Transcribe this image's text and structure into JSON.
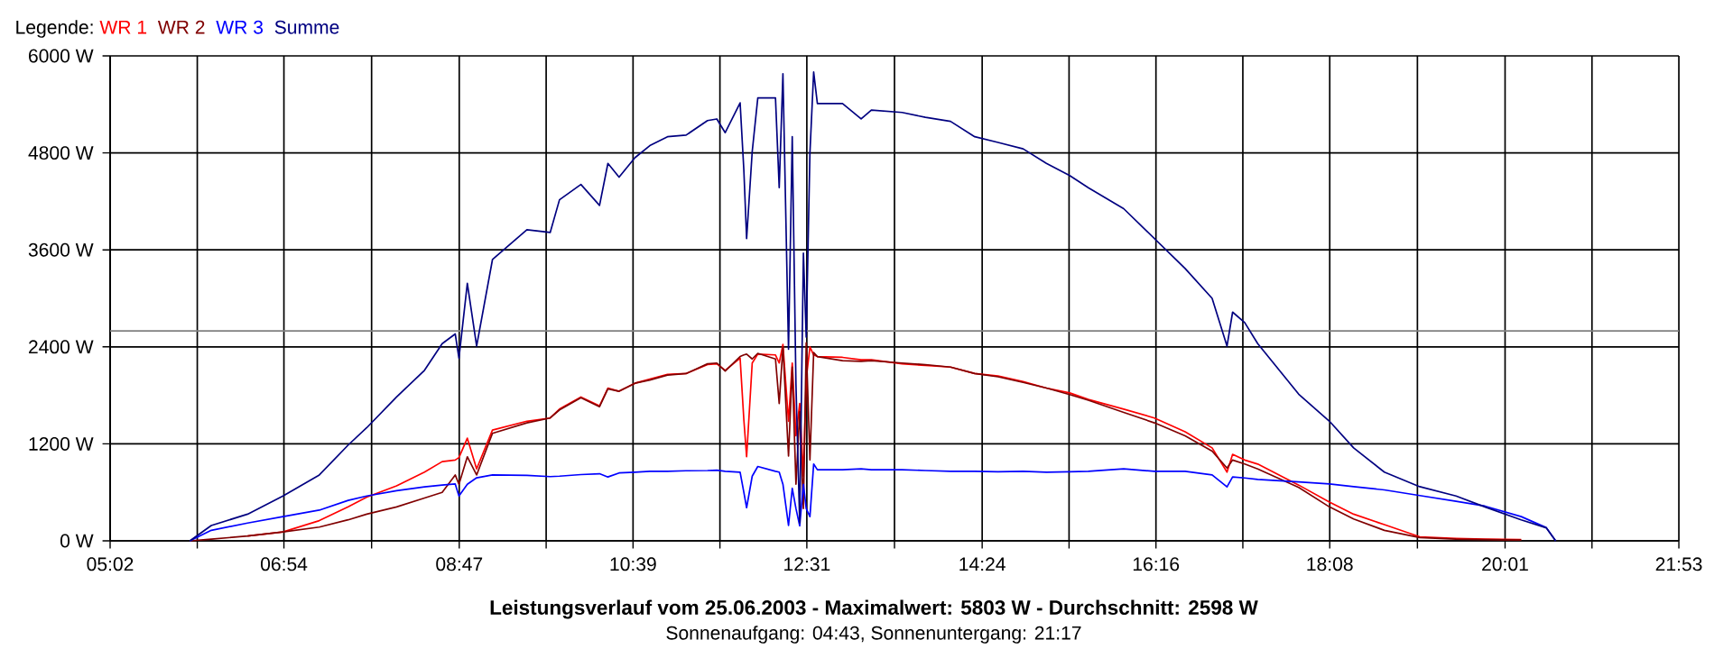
{
  "chart_data": {
    "type": "line",
    "title": "Leistungsverlauf vom 25.06.2003 - Maximalwert: 5803 W - Durchschnitt: 2598 W",
    "subtitle": "Sonnenaufgang: 04:43, Sonnenuntergang: 21:17",
    "legend_title": "Legende:",
    "legend": "top left",
    "grid": true,
    "xlim": [
      5.0333,
      21.8833
    ],
    "ylim": [
      0,
      6000
    ],
    "xticks": [
      {
        "value": 5.0333,
        "label": "05:02"
      },
      {
        "value": 5.9694,
        "label": null
      },
      {
        "value": 6.9,
        "label": "06:54"
      },
      {
        "value": 7.8417,
        "label": null
      },
      {
        "value": 8.7833,
        "label": "08:47"
      },
      {
        "value": 9.7167,
        "label": null
      },
      {
        "value": 10.65,
        "label": "10:39"
      },
      {
        "value": 11.5833,
        "label": null
      },
      {
        "value": 12.5167,
        "label": "12:31"
      },
      {
        "value": 13.4583,
        "label": null
      },
      {
        "value": 14.4,
        "label": "14:24"
      },
      {
        "value": 15.3333,
        "label": null
      },
      {
        "value": 16.2667,
        "label": "16:16"
      },
      {
        "value": 17.2,
        "label": null
      },
      {
        "value": 18.1333,
        "label": "18:08"
      },
      {
        "value": 19.075,
        "label": null
      },
      {
        "value": 20.0167,
        "label": "20:01"
      },
      {
        "value": 20.95,
        "label": null
      },
      {
        "value": 21.8833,
        "label": "21:53"
      }
    ],
    "yticks": [
      {
        "value": 0,
        "label": "0 W"
      },
      {
        "value": 1200,
        "label": "1200 W"
      },
      {
        "value": 2400,
        "label": "2400 W"
      },
      {
        "value": 3600,
        "label": "3600 W"
      },
      {
        "value": 4800,
        "label": "4800 W"
      },
      {
        "value": 6000,
        "label": "6000 W"
      }
    ],
    "ref_lines": [
      {
        "axis": "y",
        "value": 2598,
        "color": "#808080"
      }
    ],
    "x": [
      5.89,
      6.12,
      6.51,
      6.89,
      7.28,
      7.59,
      7.79,
      8.11,
      8.41,
      8.6,
      8.74,
      8.78,
      8.87,
      8.97,
      9.14,
      9.51,
      9.76,
      9.86,
      10.09,
      10.29,
      10.38,
      10.5,
      10.67,
      10.83,
      11.02,
      11.22,
      11.45,
      11.55,
      11.64,
      11.8,
      11.84,
      11.87,
      11.93,
      11.99,
      12.18,
      12.22,
      12.26,
      12.32,
      12.36,
      12.4,
      12.44,
      12.48,
      12.51,
      12.55,
      12.59,
      12.63,
      12.9,
      13.1,
      13.21,
      13.54,
      13.79,
      14.06,
      14.32,
      14.57,
      14.84,
      15.09,
      15.34,
      15.54,
      15.92,
      16.25,
      16.58,
      16.87,
      17.03,
      17.09,
      17.22,
      17.36,
      17.8,
      18.13,
      18.39,
      18.72,
      19.1,
      19.49,
      19.8,
      20.19,
      20.46,
      20.56
    ],
    "series": [
      {
        "name": "WR 1",
        "color": "#ff0000",
        "values": [
          null,
          null,
          60,
          110,
          250,
          420,
          540,
          680,
          850,
          980,
          1000,
          1030,
          1270,
          890,
          1370,
          1480,
          1520,
          1630,
          1780,
          1670,
          1890,
          1850,
          1950,
          2000,
          2060,
          2070,
          2180,
          2190,
          2110,
          2260,
          1500,
          1040,
          2200,
          2310,
          2300,
          2200,
          2430,
          1480,
          2200,
          1300,
          1700,
          800,
          2000,
          2400,
          2300,
          2280,
          2270,
          2240,
          2240,
          2190,
          2170,
          2150,
          2070,
          2040,
          1970,
          1890,
          1830,
          1750,
          1630,
          1520,
          1350,
          1150,
          850,
          1070,
          1000,
          950,
          690,
          480,
          330,
          200,
          50,
          30,
          20,
          15,
          null,
          null
        ]
      },
      {
        "name": "WR 2",
        "color": "#800000",
        "values": [
          0,
          20,
          60,
          110,
          170,
          260,
          330,
          420,
          530,
          600,
          815,
          700,
          1040,
          815,
          1330,
          1460,
          1520,
          1620,
          1770,
          1660,
          1880,
          1850,
          1950,
          1990,
          2050,
          2070,
          2190,
          2200,
          2100,
          2280,
          2300,
          2310,
          2250,
          2320,
          2250,
          1700,
          2400,
          1050,
          2150,
          700,
          1600,
          400,
          2450,
          1000,
          2330,
          2280,
          2230,
          2220,
          2230,
          2200,
          2180,
          2150,
          2070,
          2030,
          1960,
          1890,
          1810,
          1740,
          1590,
          1460,
          1300,
          1110,
          900,
          1000,
          950,
          890,
          660,
          420,
          270,
          130,
          40,
          20,
          15,
          10,
          null,
          null
        ]
      },
      {
        "name": "WR 3",
        "color": "#0000ff",
        "values": [
          0,
          130,
          220,
          300,
          380,
          500,
          555,
          620,
          667,
          690,
          704,
          555,
          700,
          780,
          815,
          810,
          795,
          800,
          820,
          830,
          790,
          840,
          850,
          860,
          860,
          867,
          870,
          875,
          860,
          850,
          600,
          410,
          800,
          920,
          860,
          850,
          700,
          190,
          650,
          400,
          185,
          700,
          400,
          300,
          950,
          880,
          880,
          890,
          880,
          880,
          870,
          860,
          860,
          855,
          860,
          850,
          855,
          860,
          890,
          860,
          860,
          815,
          667,
          790,
          778,
          760,
          730,
          704,
          670,
          630,
          560,
          490,
          430,
          300,
          163,
          0
        ]
      },
      {
        "name": "Summe",
        "color": "#000080",
        "values": [
          0,
          190,
          330,
          555,
          815,
          1185,
          1400,
          1780,
          2110,
          2440,
          2560,
          2260,
          3185,
          2410,
          3480,
          3850,
          3815,
          4220,
          4410,
          4150,
          4670,
          4500,
          4740,
          4890,
          5000,
          5020,
          5200,
          5220,
          5050,
          5420,
          4590,
          3740,
          4815,
          5480,
          5480,
          4370,
          5780,
          2370,
          5000,
          1930,
          220,
          3560,
          2520,
          4800,
          5800,
          5410,
          5410,
          5220,
          5330,
          5300,
          5240,
          5190,
          5000,
          4930,
          4850,
          4670,
          4520,
          4370,
          4110,
          3740,
          3370,
          3000,
          2410,
          2830,
          2700,
          2440,
          1815,
          1480,
          1150,
          850,
          670,
          555,
          420,
          260,
          160,
          0
        ]
      }
    ]
  }
}
